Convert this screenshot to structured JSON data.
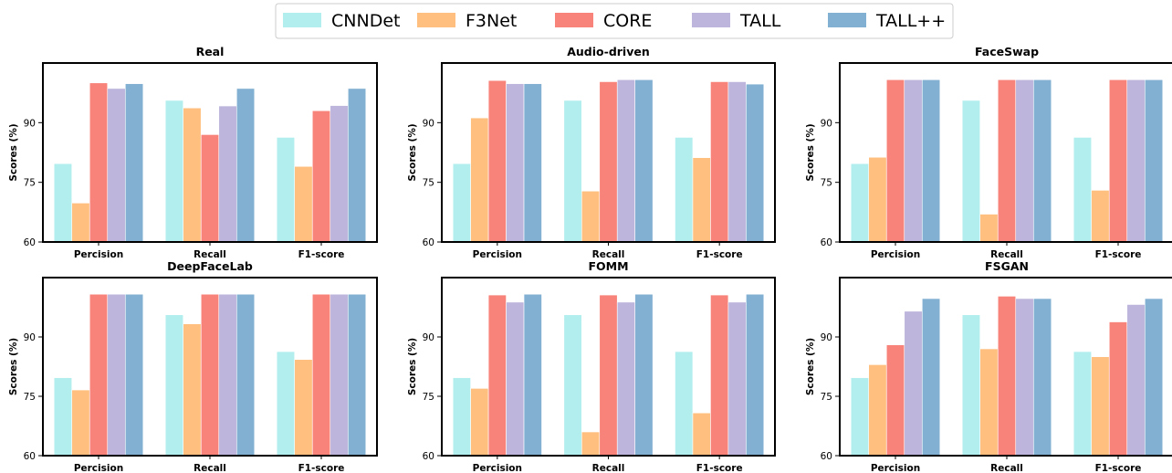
{
  "legend": {
    "items": [
      {
        "name": "CNNDet",
        "color": "#b2eeee"
      },
      {
        "name": "F3Net",
        "color": "#ffc07f"
      },
      {
        "name": "CORE",
        "color": "#f8837a"
      },
      {
        "name": "TALL",
        "color": "#bdb5db"
      },
      {
        "name": "TALL++",
        "color": "#82b0d2"
      }
    ]
  },
  "chart_data": [
    {
      "type": "bar",
      "title": "Real",
      "ylabel": "Scores (%)",
      "ylim": [
        60,
        105
      ],
      "yticks": [
        60,
        75,
        90
      ],
      "categories": [
        "Percision",
        "Recall",
        "F1-score"
      ],
      "series": [
        {
          "name": "CNNDet",
          "values": [
            79.7,
            95.6,
            86.3
          ]
        },
        {
          "name": "F3Net",
          "values": [
            69.8,
            93.7,
            79.0
          ]
        },
        {
          "name": "CORE",
          "values": [
            100.0,
            87.0,
            93.0
          ]
        },
        {
          "name": "TALL",
          "values": [
            98.6,
            94.2,
            94.3
          ]
        },
        {
          "name": "TALL++",
          "values": [
            99.8,
            98.6,
            98.6
          ]
        }
      ]
    },
    {
      "type": "bar",
      "title": "Audio-driven",
      "ylabel": "Scores (%)",
      "ylim": [
        60,
        105
      ],
      "yticks": [
        60,
        75,
        90
      ],
      "categories": [
        "Percision",
        "Recall",
        "F1-score"
      ],
      "series": [
        {
          "name": "CNNDet",
          "values": [
            79.7,
            95.6,
            86.3
          ]
        },
        {
          "name": "F3Net",
          "values": [
            91.2,
            72.8,
            81.2
          ]
        },
        {
          "name": "CORE",
          "values": [
            100.6,
            100.3,
            100.3
          ]
        },
        {
          "name": "TALL",
          "values": [
            99.8,
            100.8,
            100.3
          ]
        },
        {
          "name": "TALL++",
          "values": [
            99.8,
            100.8,
            99.7
          ]
        }
      ]
    },
    {
      "type": "bar",
      "title": "FaceSwap",
      "ylabel": "Scores (%)",
      "ylim": [
        60,
        105
      ],
      "yticks": [
        60,
        75,
        90
      ],
      "categories": [
        "Percision",
        "Recall",
        "F1-score"
      ],
      "series": [
        {
          "name": "CNNDet",
          "values": [
            79.7,
            95.6,
            86.3
          ]
        },
        {
          "name": "F3Net",
          "values": [
            81.3,
            67.0,
            73.0
          ]
        },
        {
          "name": "CORE",
          "values": [
            100.8,
            100.8,
            100.8
          ]
        },
        {
          "name": "TALL",
          "values": [
            100.8,
            100.8,
            100.8
          ]
        },
        {
          "name": "TALL++",
          "values": [
            100.8,
            100.8,
            100.8
          ]
        }
      ]
    },
    {
      "type": "bar",
      "title": "DeepFaceLab",
      "ylabel": "Scores (%)",
      "ylim": [
        60,
        105
      ],
      "yticks": [
        60,
        75,
        90
      ],
      "categories": [
        "Percision",
        "Recall",
        "F1-score"
      ],
      "series": [
        {
          "name": "CNNDet",
          "values": [
            79.7,
            95.6,
            86.3
          ]
        },
        {
          "name": "F3Net",
          "values": [
            76.6,
            93.3,
            84.3
          ]
        },
        {
          "name": "CORE",
          "values": [
            100.8,
            100.8,
            100.8
          ]
        },
        {
          "name": "TALL",
          "values": [
            100.8,
            100.8,
            100.8
          ]
        },
        {
          "name": "TALL++",
          "values": [
            100.8,
            100.8,
            100.8
          ]
        }
      ]
    },
    {
      "type": "bar",
      "title": "FOMM",
      "ylabel": "Scores (%)",
      "ylim": [
        60,
        105
      ],
      "yticks": [
        60,
        75,
        90
      ],
      "categories": [
        "Percision",
        "Recall",
        "F1-score"
      ],
      "series": [
        {
          "name": "CNNDet",
          "values": [
            79.7,
            95.6,
            86.3
          ]
        },
        {
          "name": "F3Net",
          "values": [
            77.0,
            66.0,
            70.8
          ]
        },
        {
          "name": "CORE",
          "values": [
            100.6,
            100.6,
            100.6
          ]
        },
        {
          "name": "TALL",
          "values": [
            98.8,
            98.8,
            98.8
          ]
        },
        {
          "name": "TALL++",
          "values": [
            100.8,
            100.8,
            100.8
          ]
        }
      ]
    },
    {
      "type": "bar",
      "title": "FSGAN",
      "ylabel": "Scores (%)",
      "ylim": [
        60,
        105
      ],
      "yticks": [
        60,
        75,
        90
      ],
      "categories": [
        "Percision",
        "Recall",
        "F1-score"
      ],
      "series": [
        {
          "name": "CNNDet",
          "values": [
            79.7,
            95.6,
            86.3
          ]
        },
        {
          "name": "F3Net",
          "values": [
            83.0,
            87.0,
            85.0
          ]
        },
        {
          "name": "CORE",
          "values": [
            88.0,
            100.3,
            93.8
          ]
        },
        {
          "name": "TALL",
          "values": [
            96.5,
            99.7,
            98.2
          ]
        },
        {
          "name": "TALL++",
          "values": [
            99.7,
            99.7,
            99.7
          ]
        }
      ]
    }
  ]
}
